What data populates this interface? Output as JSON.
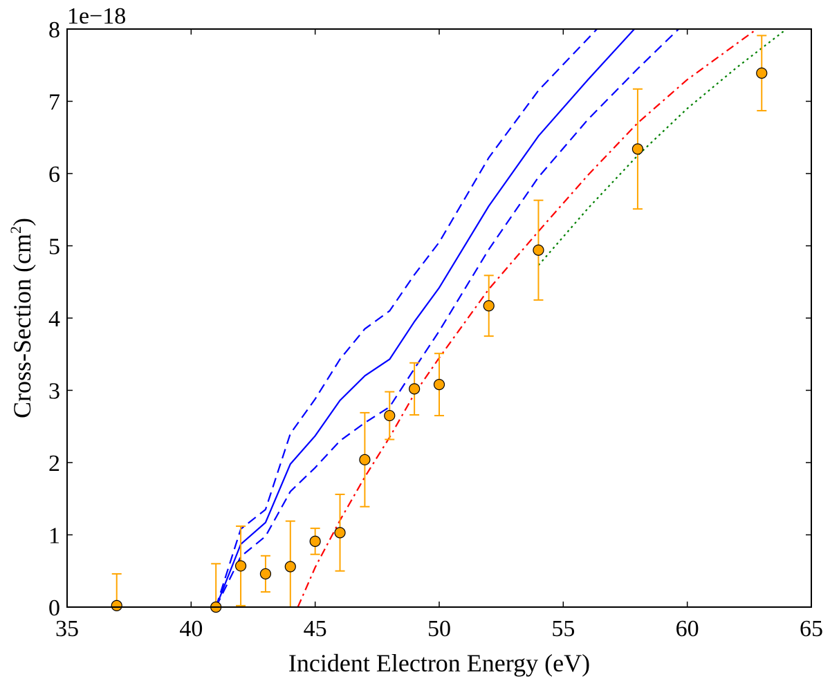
{
  "chart_data": {
    "type": "line",
    "title": "",
    "xlabel": "Incident Electron Energy (eV)",
    "ylabel": {
      "main": "Cross-Section (cm",
      "superscript": "2",
      "close": ")"
    },
    "y_offset_label": "1e−18",
    "xlim": [
      35,
      65
    ],
    "ylim": [
      0,
      8
    ],
    "x_ticks": [
      35,
      40,
      45,
      50,
      55,
      60,
      65
    ],
    "y_ticks": [
      0,
      1,
      2,
      3,
      4,
      5,
      6,
      7,
      8
    ],
    "grid": false,
    "legend": "none",
    "points": {
      "name": "measured",
      "marker_color": "#FFA500",
      "errorbar_color": "#FFA500",
      "x": [
        37,
        41,
        42,
        43,
        44,
        45,
        46,
        47,
        48,
        49,
        50,
        52,
        54,
        58,
        63
      ],
      "y": [
        0.02,
        0.0,
        0.57,
        0.46,
        0.56,
        0.91,
        1.03,
        2.04,
        2.65,
        3.02,
        3.08,
        4.17,
        4.94,
        6.34,
        7.39
      ],
      "yerr": [
        0.44,
        0.6,
        0.55,
        0.25,
        0.63,
        0.18,
        0.53,
        0.65,
        0.33,
        0.36,
        0.43,
        0.42,
        0.69,
        0.83,
        0.52
      ]
    },
    "series": [
      {
        "name": "solid-blue",
        "color": "#0000FF",
        "style": "solid",
        "x": [
          41,
          42,
          43,
          44,
          45,
          46,
          47,
          48,
          49,
          50,
          52,
          54,
          56,
          58
        ],
        "y": [
          0.0,
          0.87,
          1.17,
          1.98,
          2.37,
          2.86,
          3.2,
          3.43,
          3.95,
          4.42,
          5.55,
          6.52,
          7.3,
          8.05
        ]
      },
      {
        "name": "dashed-blue-upper",
        "color": "#0000FF",
        "style": "dashed",
        "x": [
          41,
          42,
          43,
          44,
          45,
          46,
          47,
          48,
          49,
          50,
          52,
          54,
          56.5
        ],
        "y": [
          0.0,
          1.08,
          1.35,
          2.4,
          2.88,
          3.43,
          3.85,
          4.1,
          4.6,
          5.05,
          6.22,
          7.15,
          8.05
        ]
      },
      {
        "name": "dashed-blue-lower",
        "color": "#0000FF",
        "style": "dashed",
        "x": [
          41,
          42,
          43,
          44,
          45,
          46,
          47,
          48,
          49,
          50,
          52,
          54,
          56,
          58,
          59.8
        ],
        "y": [
          0.0,
          0.7,
          0.98,
          1.6,
          1.93,
          2.3,
          2.55,
          2.77,
          3.3,
          3.82,
          4.95,
          5.95,
          6.75,
          7.45,
          8.05
        ]
      },
      {
        "name": "dashdot-red",
        "color": "#FF0000",
        "style": "dashdot",
        "x": [
          44.3,
          45,
          46,
          47,
          48,
          49,
          50,
          52,
          54,
          56,
          58,
          60,
          62,
          63
        ],
        "y": [
          0.0,
          0.55,
          1.2,
          1.8,
          2.35,
          2.95,
          3.45,
          4.4,
          5.2,
          5.98,
          6.7,
          7.3,
          7.8,
          8.05
        ]
      },
      {
        "name": "dotted-green",
        "color": "#008000",
        "style": "dotted",
        "x": [
          54,
          56,
          58,
          60,
          62,
          64
        ],
        "y": [
          4.73,
          5.52,
          6.25,
          6.9,
          7.47,
          8.0
        ]
      }
    ]
  }
}
